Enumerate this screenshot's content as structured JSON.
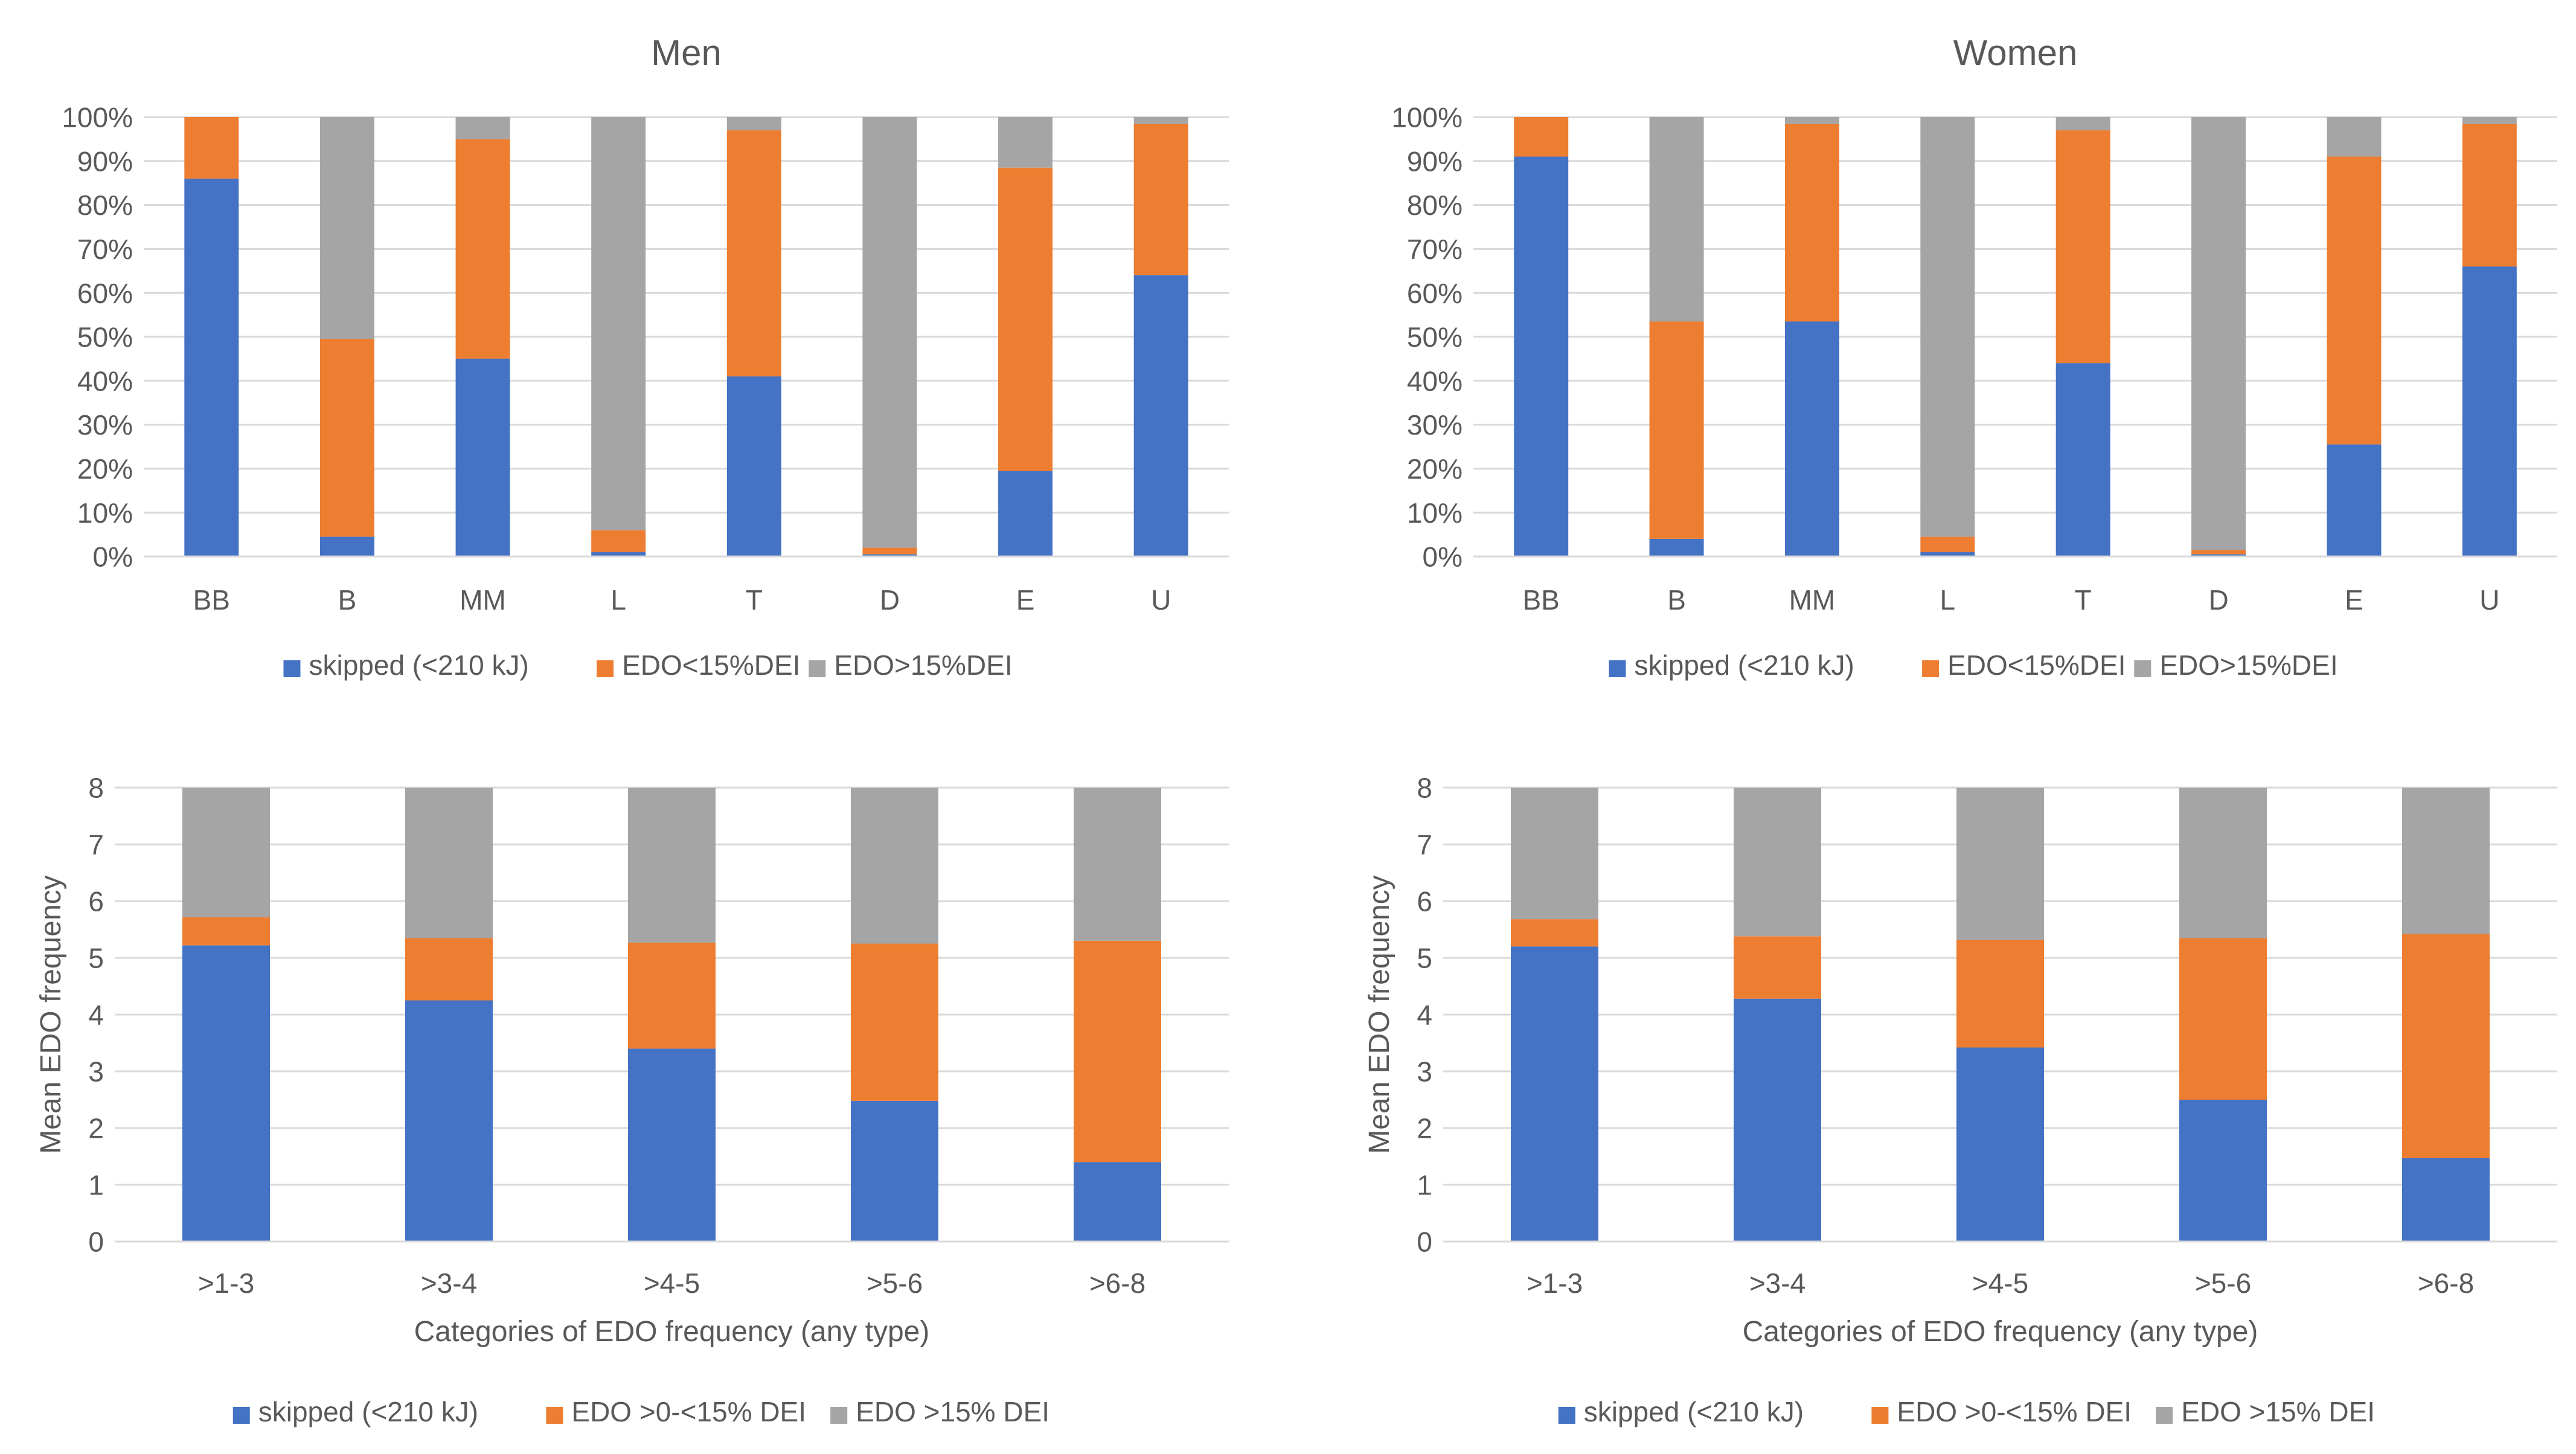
{
  "colors": {
    "skipped": "#4472C4",
    "low": "#ED7D31",
    "high": "#A5A5A5",
    "grid": "#D9D9D9",
    "text": "#595959"
  },
  "chart_data": [
    {
      "id": "men-meal-types",
      "type": "bar",
      "stacked": true,
      "title": "Men",
      "xlabel": "",
      "ylabel": "",
      "categories": [
        "BB",
        "B",
        "MM",
        "L",
        "T",
        "D",
        "E",
        "U"
      ],
      "ylim": [
        0,
        100
      ],
      "y_ticks": [
        "0%",
        "10%",
        "20%",
        "30%",
        "40%",
        "50%",
        "60%",
        "70%",
        "80%",
        "90%",
        "100%"
      ],
      "legend_position": "bottom",
      "series": [
        {
          "name": "skipped (<210 kJ)",
          "color_key": "skipped",
          "values": [
            86,
            4.5,
            45,
            1,
            41,
            0.5,
            19.5,
            64
          ]
        },
        {
          "name": "EDO<15%DEI",
          "color_key": "low",
          "values": [
            14,
            45,
            50,
            5,
            56,
            1.5,
            69,
            34.5
          ]
        },
        {
          "name": "EDO>15%DEI",
          "color_key": "high",
          "values": [
            0,
            50.5,
            5,
            94,
            3,
            98,
            11.5,
            1.5
          ]
        }
      ]
    },
    {
      "id": "women-meal-types",
      "type": "bar",
      "stacked": true,
      "title": "Women",
      "xlabel": "",
      "ylabel": "",
      "categories": [
        "BB",
        "B",
        "MM",
        "L",
        "T",
        "D",
        "E",
        "U"
      ],
      "ylim": [
        0,
        100
      ],
      "y_ticks": [
        "0%",
        "10%",
        "20%",
        "30%",
        "40%",
        "50%",
        "60%",
        "70%",
        "80%",
        "90%",
        "100%"
      ],
      "legend_position": "bottom",
      "series": [
        {
          "name": "skipped (<210 kJ)",
          "color_key": "skipped",
          "values": [
            91,
            4,
            53.5,
            1,
            44,
            0.5,
            25.5,
            66
          ]
        },
        {
          "name": "EDO<15%DEI",
          "color_key": "low",
          "values": [
            9,
            49.5,
            45,
            3.5,
            53,
            1,
            65.5,
            32.5
          ]
        },
        {
          "name": "EDO>15%DEI",
          "color_key": "high",
          "values": [
            0,
            46.5,
            1.5,
            95.5,
            3,
            98.5,
            9,
            1.5
          ]
        }
      ]
    },
    {
      "id": "men-edo-frequency",
      "type": "bar",
      "stacked": true,
      "title": "",
      "xlabel": "Categories of EDO frequency (any type)",
      "ylabel": "Mean EDO frequency",
      "categories": [
        ">1-3",
        ">3-4",
        ">4-5",
        ">5-6",
        ">6-8"
      ],
      "ylim": [
        0,
        8
      ],
      "y_ticks": [
        "0",
        "1",
        "2",
        "3",
        "4",
        "5",
        "6",
        "7",
        "8"
      ],
      "legend_position": "bottom",
      "series": [
        {
          "name": "skipped (<210 kJ)",
          "color_key": "skipped",
          "values": [
            5.22,
            4.25,
            3.4,
            2.48,
            1.4
          ]
        },
        {
          "name": "EDO >0-<15% DEI",
          "color_key": "low",
          "values": [
            0.5,
            1.1,
            1.87,
            2.77,
            3.9
          ]
        },
        {
          "name": "EDO >15% DEI",
          "color_key": "high",
          "values": [
            2.28,
            2.65,
            2.73,
            2.75,
            2.7
          ]
        }
      ]
    },
    {
      "id": "women-edo-frequency",
      "type": "bar",
      "stacked": true,
      "title": "",
      "xlabel": "Categories of EDO frequency (any type)",
      "ylabel": "Mean EDO frequency",
      "categories": [
        ">1-3",
        ">3-4",
        ">4-5",
        ">5-6",
        ">6-8"
      ],
      "ylim": [
        0,
        8
      ],
      "y_ticks": [
        "0",
        "1",
        "2",
        "3",
        "4",
        "5",
        "6",
        "7",
        "8"
      ],
      "legend_position": "bottom",
      "series": [
        {
          "name": "skipped (<210 kJ)",
          "color_key": "skipped",
          "values": [
            5.2,
            4.28,
            3.42,
            2.5,
            1.47
          ]
        },
        {
          "name": "EDO >0-<15% DEI",
          "color_key": "low",
          "values": [
            0.48,
            1.1,
            1.9,
            2.85,
            3.95
          ]
        },
        {
          "name": "EDO >15% DEI",
          "color_key": "high",
          "values": [
            2.32,
            2.62,
            2.68,
            2.65,
            2.58
          ]
        }
      ]
    }
  ]
}
